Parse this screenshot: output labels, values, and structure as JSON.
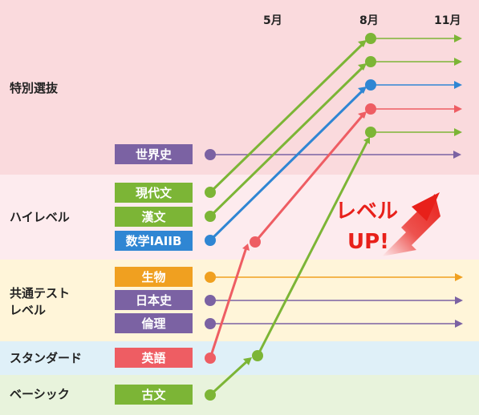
{
  "months": [
    "5月",
    "8月",
    "11月"
  ],
  "bands": [
    {
      "label": "特別選抜"
    },
    {
      "label": "ハイレベル"
    },
    {
      "label": "共通テスト\nレベル"
    },
    {
      "label": "スタンダード"
    },
    {
      "label": "ベーシック"
    }
  ],
  "subjects": [
    {
      "label": "世界史"
    },
    {
      "label": "現代文"
    },
    {
      "label": "漢文"
    },
    {
      "label": "数学IAIIB"
    },
    {
      "label": "生物"
    },
    {
      "label": "日本史"
    },
    {
      "label": "倫理"
    },
    {
      "label": "英語"
    },
    {
      "label": "古文"
    }
  ],
  "callout": {
    "line1": "レベル",
    "line2": "UP!"
  },
  "colors": {
    "band_special": "#fadadd",
    "band_high": "#fdebee",
    "band_common": "#fff5d9",
    "band_standard": "#dff0f8",
    "band_basic": "#e8f3dc",
    "green": "#7cb536",
    "purple": "#7b62a3",
    "blue": "#2f86d3",
    "orange": "#f0a020",
    "red": "#ee5d63"
  }
}
